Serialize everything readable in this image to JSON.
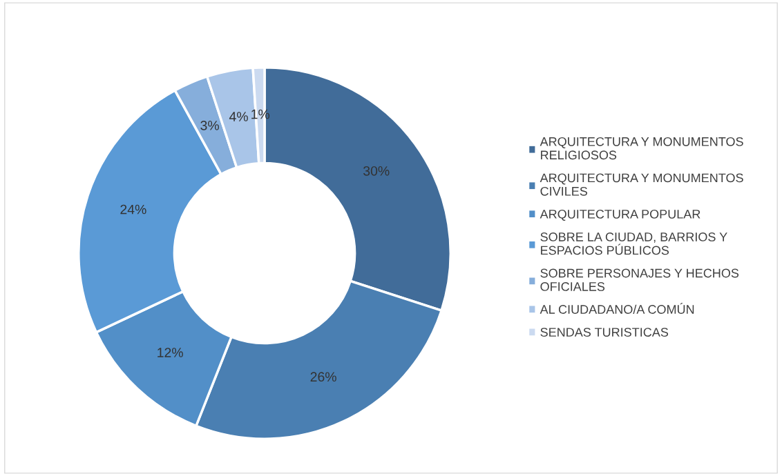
{
  "chart_data": {
    "type": "donut",
    "categories": [
      "ARQUITECTURA Y MONUMENTOS\nRELIGIOSOS",
      "ARQUITECTURA Y MONUMENTOS\nCIVILES",
      "ARQUITECTURA POPULAR",
      "SOBRE LA CIUDAD, BARRIOS Y\nESPACIOS PÚBLICOS",
      "SOBRE PERSONAJES Y HECHOS\nOFICIALES",
      "AL CIUDADANO/A COMÚN",
      "SENDAS TURISTICAS"
    ],
    "values": [
      30,
      26,
      12,
      24,
      3,
      4,
      1
    ],
    "colors": [
      "#416c99",
      "#4a7fb2",
      "#528fc8",
      "#5a9ad6",
      "#86aedb",
      "#a9c5e8",
      "#cbdaf0"
    ],
    "value_labels": [
      "30%",
      "26%",
      "12%",
      "24%",
      "3%",
      "4%",
      "1%"
    ],
    "legend": "right"
  }
}
